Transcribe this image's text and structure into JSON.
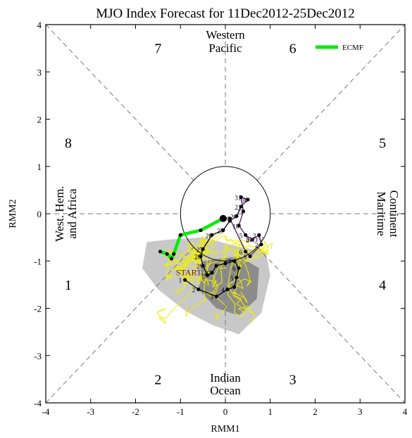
{
  "chart_data": {
    "type": "line",
    "title": "MJO Index Forecast for 11Dec2012-25Dec2012",
    "xlabel": "RMM1",
    "ylabel": "RMM2",
    "xlim": [
      -4,
      4
    ],
    "ylim": [
      -4,
      4
    ],
    "x_ticks": [
      "-4",
      "-3",
      "-2",
      "-1",
      "0",
      "1",
      "2",
      "3",
      "4"
    ],
    "y_ticks": [
      "-4",
      "-3",
      "-2",
      "-1",
      "0",
      "1",
      "2",
      "3",
      "4"
    ],
    "grid": "dashed diagonals and axes through origin",
    "unit_circle_radius": 1,
    "phases": [
      {
        "number": "1",
        "x": -3.5,
        "y": -1.5
      },
      {
        "number": "2",
        "x": -1.5,
        "y": -3.5
      },
      {
        "number": "3",
        "x": 1.5,
        "y": -3.5
      },
      {
        "number": "4",
        "x": 3.5,
        "y": -1.5
      },
      {
        "number": "5",
        "x": 3.5,
        "y": 1.5
      },
      {
        "number": "6",
        "x": 1.5,
        "y": 3.5
      },
      {
        "number": "7",
        "x": -1.5,
        "y": 3.5
      },
      {
        "number": "8",
        "x": -3.5,
        "y": 1.5
      }
    ],
    "regions": {
      "western_pacific": [
        "Western",
        "Pacific"
      ],
      "indian_ocean": [
        "Indian",
        "Ocean"
      ],
      "maritime_continent": [
        "Maritime",
        "Continent"
      ],
      "west_hem_africa": [
        "West. Hem.",
        "and Africa"
      ]
    },
    "legend": {
      "label": "ECMF",
      "color": "#00ee00",
      "position": "top-right"
    },
    "annotations": {
      "start": "START",
      "nov": "NOV"
    },
    "observed_series": {
      "name": "",
      "color": "#000000",
      "points": [
        {
          "x": -0.9,
          "y": -1.4,
          "label": "1"
        },
        {
          "x": -0.6,
          "y": -1.6,
          "label": "2"
        },
        {
          "x": -0.2,
          "y": -1.75,
          "label": "3"
        },
        {
          "x": 0.05,
          "y": -1.6,
          "label": "4"
        },
        {
          "x": 0.2,
          "y": -1.55,
          "label": ""
        },
        {
          "x": 0.25,
          "y": -1.35,
          "label": "5"
        },
        {
          "x": 0.3,
          "y": -1.15,
          "label": "6"
        },
        {
          "x": 0.2,
          "y": -1.0,
          "label": "7"
        },
        {
          "x": 0.0,
          "y": -1.05,
          "label": ""
        },
        {
          "x": -0.2,
          "y": -1.1,
          "label": ""
        },
        {
          "x": -0.3,
          "y": -1.25,
          "label": "17"
        },
        {
          "x": -0.4,
          "y": -1.3,
          "label": "19"
        },
        {
          "x": -0.5,
          "y": -1.1,
          "label": "29"
        },
        {
          "x": -0.55,
          "y": -0.9,
          "label": "28"
        },
        {
          "x": -0.5,
          "y": -0.75,
          "label": "27"
        },
        {
          "x": -0.3,
          "y": -0.45,
          "label": "26"
        },
        {
          "x": -0.05,
          "y": -0.35,
          "label": "25"
        },
        {
          "x": 0.1,
          "y": -0.15,
          "label": ""
        },
        {
          "x": 0.25,
          "y": -0.05,
          "label": "20"
        },
        {
          "x": 0.35,
          "y": 0.15,
          "label": "21"
        },
        {
          "x": 0.5,
          "y": 0.3,
          "label": "30"
        },
        {
          "x": 0.35,
          "y": 0.35,
          "label": "31"
        },
        {
          "x": 0.4,
          "y": 0.05,
          "label": "22"
        },
        {
          "x": 0.3,
          "y": -0.25,
          "label": "18"
        },
        {
          "x": 0.45,
          "y": -0.45,
          "label": "5"
        },
        {
          "x": 0.6,
          "y": -0.55,
          "label": "4"
        },
        {
          "x": 0.75,
          "y": -0.45,
          "label": "3"
        },
        {
          "x": 0.8,
          "y": -0.65,
          "label": "2"
        },
        {
          "x": 0.55,
          "y": -0.9,
          "label": "8"
        },
        {
          "x": 0.45,
          "y": -0.8,
          "label": "6"
        },
        {
          "x": 0.1,
          "y": -0.1,
          "label": "10"
        }
      ]
    },
    "ecmf_series": {
      "name": "ECMF",
      "color": "#00ee00",
      "points": [
        {
          "x": -0.05,
          "y": -0.1
        },
        {
          "x": -0.55,
          "y": -0.35
        },
        {
          "x": -1.0,
          "y": -0.45
        },
        {
          "x": -1.15,
          "y": -0.85
        },
        {
          "x": -1.2,
          "y": -0.95
        },
        {
          "x": -1.3,
          "y": -0.85
        },
        {
          "x": -1.45,
          "y": -0.8
        }
      ]
    }
  }
}
